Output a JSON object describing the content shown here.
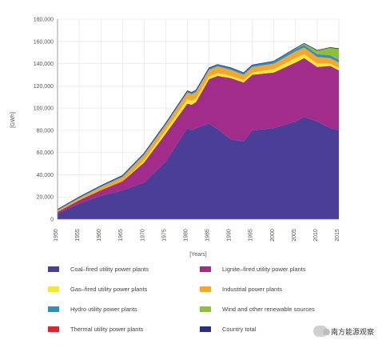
{
  "chart_data": {
    "type": "area",
    "stacked": true,
    "ylabel": "[GWh]",
    "xlabel": "[Years]",
    "xlim": [
      1950,
      2015
    ],
    "ylim": [
      0,
      180000
    ],
    "x_ticks": [
      "1950",
      "1955",
      "1960",
      "1965",
      "1970",
      "1975",
      "1980",
      "1985",
      "1990",
      "1995",
      "2000",
      "2005",
      "2010",
      "2015"
    ],
    "y_ticks": [
      "0",
      "20,000",
      "40,000",
      "60,000",
      "80,000",
      "100,000",
      "120,000",
      "140,000",
      "160,000",
      "180,000"
    ],
    "x": [
      1950,
      1955,
      1960,
      1965,
      1970,
      1975,
      1980,
      1981,
      1982,
      1985,
      1987,
      1990,
      1993,
      1995,
      2000,
      2005,
      2007,
      2010,
      2013,
      2015
    ],
    "series": [
      {
        "name": "Coal–fired utility power plants",
        "color": "#4a3e96",
        "values": [
          5000,
          14000,
          21000,
          26000,
          33000,
          52000,
          82000,
          80000,
          82000,
          86000,
          81000,
          72000,
          70000,
          80000,
          82000,
          88000,
          92000,
          88000,
          82000,
          80000
        ]
      },
      {
        "name": "Lignite–fired utility power plants",
        "color": "#a12c8a",
        "values": [
          1500,
          3000,
          5000,
          8000,
          18000,
          25000,
          22000,
          23000,
          23500,
          40000,
          48000,
          55000,
          53000,
          50000,
          50000,
          53000,
          53000,
          49000,
          56000,
          54000
        ]
      },
      {
        "name": "Gas–fired utility power plants",
        "color": "#f5e63a",
        "values": [
          0,
          0,
          0,
          0,
          2000,
          3000,
          4000,
          3500,
          3000,
          2500,
          2500,
          2000,
          2000,
          2000,
          3000,
          4000,
          3500,
          3000,
          2000,
          2000
        ]
      },
      {
        "name": "Industrial power plants",
        "color": "#f2a830",
        "values": [
          1500,
          2000,
          3000,
          4000,
          5000,
          5000,
          6000,
          6000,
          6000,
          6000,
          6000,
          5500,
          5000,
          5000,
          5000,
          6000,
          6000,
          6000,
          5000,
          5000
        ]
      },
      {
        "name": "Hydro utility power plants",
        "color": "#2f8fc0",
        "values": [
          800,
          1000,
          1200,
          1300,
          1400,
          1500,
          1600,
          1600,
          1600,
          1700,
          1700,
          1800,
          1800,
          1800,
          2000,
          2200,
          2200,
          2500,
          2500,
          2500
        ]
      },
      {
        "name": "Wind and other renewable sources",
        "color": "#8dbf3a",
        "values": [
          0,
          0,
          0,
          0,
          0,
          0,
          0,
          0,
          0,
          0,
          0,
          0,
          0,
          0,
          200,
          700,
          1500,
          3500,
          7000,
          10000
        ]
      },
      {
        "name": "Thermal utility power plants",
        "color": "#e0232c",
        "values": [
          0,
          0,
          0,
          0,
          0,
          0,
          0,
          0,
          0,
          0,
          0,
          0,
          0,
          0,
          0,
          0,
          0,
          0,
          0,
          0
        ]
      }
    ],
    "country_total": {
      "name": "Country total",
      "color": "#2a2d86",
      "values": [
        8800,
        20000,
        30200,
        39300,
        59400,
        86500,
        115600,
        114100,
        116100,
        136200,
        139200,
        136300,
        131800,
        138800,
        142200,
        153900,
        158200,
        152000,
        154500,
        153500
      ]
    },
    "grid": true,
    "legend_position": "bottom"
  },
  "watermark": {
    "text": "南方能源观察"
  }
}
